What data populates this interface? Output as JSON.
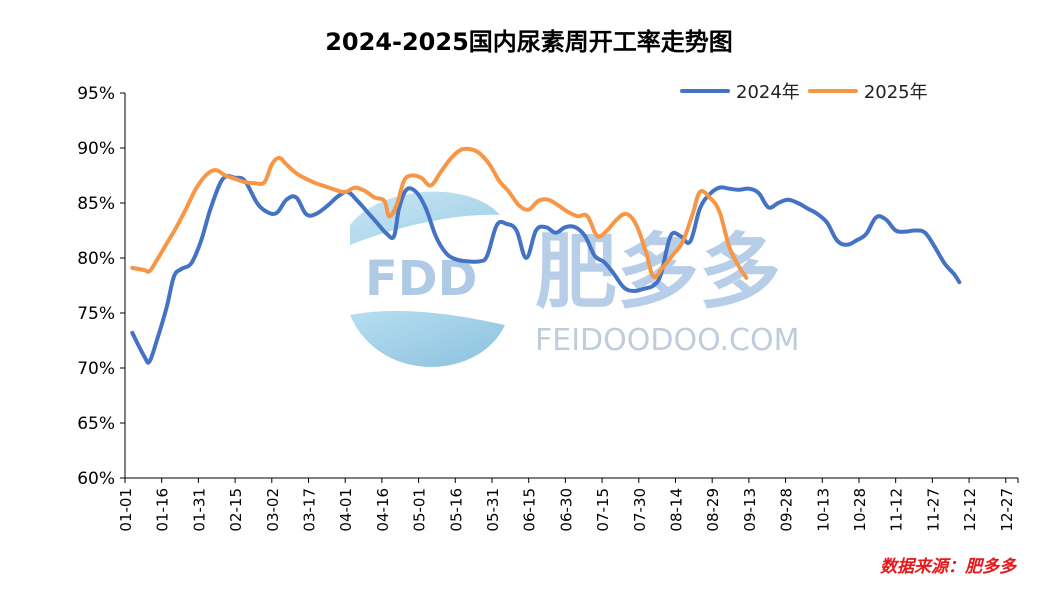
{
  "chart_data": {
    "type": "line",
    "title": "2024-2025国内尿素周开工率走势图",
    "source": "数据来源：肥多多",
    "xlabel": "",
    "ylabel": "",
    "ylim": [
      60,
      95
    ],
    "yticks": [
      "60%",
      "65%",
      "70%",
      "75%",
      "80%",
      "85%",
      "90%",
      "95%"
    ],
    "xticks": [
      "01-01",
      "01-16",
      "01-31",
      "02-15",
      "03-02",
      "03-17",
      "04-01",
      "04-16",
      "05-01",
      "05-16",
      "05-31",
      "06-15",
      "06-30",
      "07-15",
      "07-30",
      "08-14",
      "08-29",
      "09-13",
      "09-28",
      "10-13",
      "10-28",
      "11-12",
      "11-27",
      "12-12",
      "12-27"
    ],
    "legend_position": "top-right",
    "grid": false,
    "series": [
      {
        "name": "2024年",
        "color": "#4472c4",
        "points": [
          [
            3,
            73.2
          ],
          [
            8,
            71.0
          ],
          [
            10,
            70.6
          ],
          [
            13,
            72.5
          ],
          [
            17,
            75.5
          ],
          [
            20,
            78.3
          ],
          [
            23,
            79.0
          ],
          [
            27,
            79.5
          ],
          [
            31,
            81.5
          ],
          [
            35,
            84.5
          ],
          [
            40,
            87.2
          ],
          [
            45,
            87.3
          ],
          [
            49,
            87.0
          ],
          [
            54,
            85.0
          ],
          [
            58,
            84.2
          ],
          [
            62,
            84.1
          ],
          [
            66,
            85.3
          ],
          [
            70,
            85.5
          ],
          [
            74,
            84.0
          ],
          [
            78,
            84.0
          ],
          [
            83,
            84.8
          ],
          [
            87,
            85.6
          ],
          [
            91,
            86.0
          ],
          [
            95,
            85.2
          ],
          [
            99,
            84.2
          ],
          [
            103,
            83.2
          ],
          [
            107,
            82.2
          ],
          [
            110,
            82.0
          ],
          [
            112,
            84.5
          ],
          [
            115,
            86.2
          ],
          [
            119,
            86.0
          ],
          [
            123,
            84.5
          ],
          [
            127,
            82.0
          ],
          [
            131,
            80.5
          ],
          [
            135,
            79.9
          ],
          [
            140,
            79.7
          ],
          [
            145,
            79.7
          ],
          [
            148,
            80.2
          ],
          [
            152,
            83.0
          ],
          [
            156,
            83.1
          ],
          [
            160,
            82.5
          ],
          [
            164,
            80.0
          ],
          [
            168,
            82.5
          ],
          [
            172,
            82.8
          ],
          [
            176,
            82.3
          ],
          [
            180,
            82.8
          ],
          [
            184,
            82.8
          ],
          [
            188,
            82.0
          ],
          [
            192,
            80.2
          ],
          [
            196,
            79.6
          ],
          [
            200,
            78.5
          ],
          [
            204,
            77.3
          ],
          [
            208,
            77.0
          ],
          [
            212,
            77.2
          ],
          [
            216,
            77.5
          ],
          [
            219,
            78.5
          ],
          [
            223,
            82.0
          ],
          [
            227,
            82.0
          ],
          [
            231,
            81.5
          ],
          [
            235,
            84.5
          ],
          [
            239,
            85.8
          ],
          [
            243,
            86.4
          ],
          [
            247,
            86.3
          ],
          [
            251,
            86.2
          ],
          [
            255,
            86.3
          ],
          [
            259,
            85.9
          ],
          [
            263,
            84.6
          ],
          [
            267,
            85.0
          ],
          [
            271,
            85.3
          ],
          [
            275,
            85.0
          ],
          [
            279,
            84.5
          ],
          [
            283,
            84.0
          ],
          [
            287,
            83.2
          ],
          [
            291,
            81.6
          ],
          [
            295,
            81.2
          ],
          [
            299,
            81.6
          ],
          [
            303,
            82.2
          ],
          [
            307,
            83.7
          ],
          [
            311,
            83.5
          ],
          [
            315,
            82.5
          ],
          [
            319,
            82.4
          ],
          [
            323,
            82.5
          ],
          [
            327,
            82.3
          ],
          [
            331,
            81.0
          ],
          [
            335,
            79.5
          ],
          [
            339,
            78.5
          ],
          [
            341,
            77.8
          ]
        ]
      },
      {
        "name": "2025年",
        "color": "#f79646",
        "points": [
          [
            3,
            79.1
          ],
          [
            8,
            78.9
          ],
          [
            10,
            78.8
          ],
          [
            13,
            79.8
          ],
          [
            17,
            81.3
          ],
          [
            21,
            82.8
          ],
          [
            25,
            84.5
          ],
          [
            29,
            86.3
          ],
          [
            33,
            87.5
          ],
          [
            37,
            88.0
          ],
          [
            41,
            87.5
          ],
          [
            45,
            87.2
          ],
          [
            49,
            86.9
          ],
          [
            53,
            86.8
          ],
          [
            57,
            86.9
          ],
          [
            60,
            88.5
          ],
          [
            63,
            89.1
          ],
          [
            66,
            88.5
          ],
          [
            70,
            87.7
          ],
          [
            74,
            87.2
          ],
          [
            78,
            86.8
          ],
          [
            82,
            86.5
          ],
          [
            86,
            86.2
          ],
          [
            90,
            86.0
          ],
          [
            94,
            86.4
          ],
          [
            98,
            86.1
          ],
          [
            102,
            85.5
          ],
          [
            106,
            85.2
          ],
          [
            108,
            83.8
          ],
          [
            111,
            84.8
          ],
          [
            114,
            87.0
          ],
          [
            117,
            87.5
          ],
          [
            121,
            87.3
          ],
          [
            125,
            86.6
          ],
          [
            129,
            87.8
          ],
          [
            133,
            89.0
          ],
          [
            137,
            89.8
          ],
          [
            141,
            89.9
          ],
          [
            145,
            89.5
          ],
          [
            149,
            88.5
          ],
          [
            153,
            87.0
          ],
          [
            157,
            86.0
          ],
          [
            161,
            84.8
          ],
          [
            165,
            84.4
          ],
          [
            169,
            85.2
          ],
          [
            173,
            85.3
          ],
          [
            177,
            84.8
          ],
          [
            181,
            84.2
          ],
          [
            185,
            83.8
          ],
          [
            189,
            83.8
          ],
          [
            193,
            82.0
          ],
          [
            197,
            82.5
          ],
          [
            201,
            83.5
          ],
          [
            205,
            84.0
          ],
          [
            209,
            83.0
          ],
          [
            213,
            80.5
          ],
          [
            216,
            78.3
          ],
          [
            220,
            79.2
          ],
          [
            224,
            80.3
          ],
          [
            228,
            81.5
          ],
          [
            232,
            84.0
          ],
          [
            235,
            86.0
          ],
          [
            239,
            85.5
          ],
          [
            243,
            84.2
          ],
          [
            247,
            81.0
          ],
          [
            251,
            79.2
          ],
          [
            254,
            78.2
          ]
        ]
      }
    ]
  },
  "watermark": {
    "logo_text": "FDD",
    "brand_cn": "肥多多",
    "brand_url": "FEIDOODOO.COM"
  },
  "colors": {
    "axis": "#000000",
    "source_text": "#e8191c"
  }
}
